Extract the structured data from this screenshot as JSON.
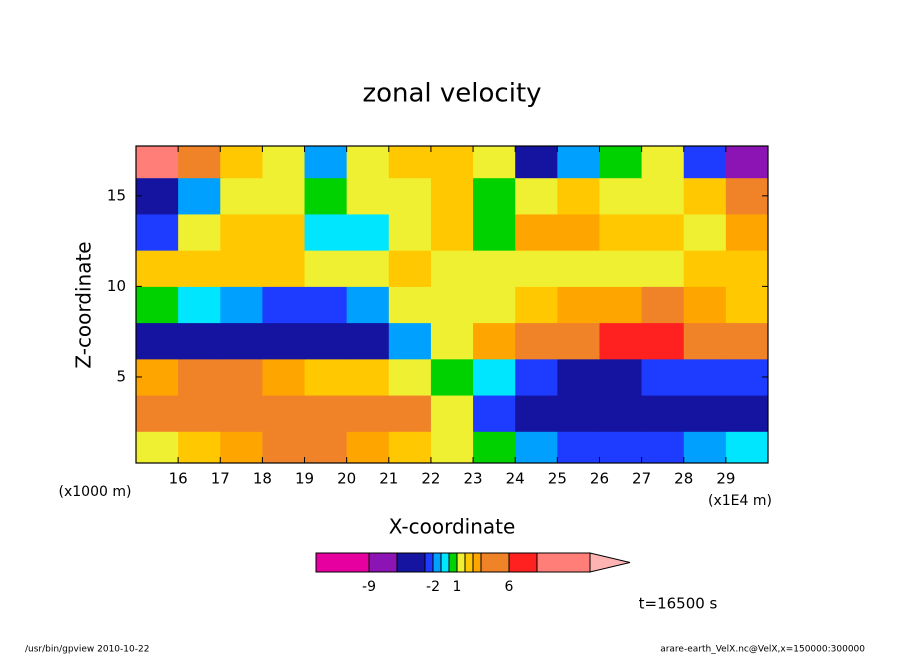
{
  "chart_data": {
    "type": "heatmap",
    "title": "zonal velocity",
    "x_label": "X-coordinate",
    "y_label": "Z-coordinate",
    "x_unit_label": "(x1E4 m)",
    "y_unit_label": "(x1000 m)",
    "xlim": [
      15,
      30
    ],
    "ylim": [
      0.25,
      17.75
    ],
    "xticks": [
      16,
      17,
      18,
      19,
      20,
      21,
      22,
      23,
      24,
      25,
      26,
      27,
      28,
      29
    ],
    "yticks": [
      5,
      10,
      15
    ],
    "x": [
      15.5,
      16.5,
      17.5,
      18.5,
      19.5,
      20.5,
      21.5,
      22.5,
      23.5,
      24.5,
      25.5,
      26.5,
      27.5,
      28.5,
      29.5
    ],
    "y": [
      1,
      3,
      5,
      7,
      9,
      11,
      13,
      15,
      17
    ],
    "z": [
      [
        1,
        2,
        3,
        4,
        4,
        3,
        2,
        1,
        0,
        -2,
        -3,
        -3,
        -3,
        -2,
        -1
      ],
      [
        4,
        5,
        5,
        5,
        5,
        5,
        4,
        1,
        -3,
        -5,
        -5,
        -5,
        -5,
        -5,
        -4
      ],
      [
        3,
        4,
        4,
        3,
        2,
        2,
        1,
        0,
        -1,
        -3,
        -4,
        -4,
        -3,
        -3,
        -3
      ],
      [
        -4,
        -4,
        -5,
        -6,
        -5,
        -4,
        -2,
        1,
        3,
        4,
        5,
        6,
        6,
        5,
        4
      ],
      [
        0,
        -1,
        -2,
        -3,
        -3,
        -2,
        1,
        1,
        1,
        2,
        3,
        3,
        4,
        3,
        2
      ],
      [
        2,
        2,
        2,
        2,
        1,
        1,
        2,
        1,
        1,
        1,
        1,
        1,
        1,
        2,
        2
      ],
      [
        -3,
        1,
        2,
        2,
        -1,
        -1,
        1,
        2,
        0,
        3,
        3,
        2,
        2,
        1,
        3
      ],
      [
        -5,
        -2,
        1,
        1,
        0,
        1,
        1,
        2,
        0,
        1,
        2,
        1,
        1,
        2,
        5
      ],
      [
        9,
        4,
        2,
        1,
        -2,
        1,
        2,
        2,
        1,
        -4,
        -2,
        0,
        1,
        -3,
        -9
      ]
    ],
    "colorbar": {
      "levels": [
        -12,
        -9,
        -6,
        -3,
        -2,
        -1,
        0,
        1,
        2,
        3,
        4,
        6,
        9,
        12
      ],
      "colors": [
        "#e600a0",
        "#8c14b4",
        "#1414a0",
        "#1e3cff",
        "#00a0ff",
        "#00e6ff",
        "#00d200",
        "#f0f032",
        "#ffc800",
        "#ffa500",
        "#f08228",
        "#ff2020",
        "#ff7f78"
      ],
      "over_color": "#ffb4b4",
      "ticks": [
        -9,
        -2,
        1,
        6
      ]
    },
    "annotation": "t=16500 s",
    "footer_left": "/usr/bin/gpview  2010-10-22",
    "footer_right": "arare-earth_VelX.nc@VelX,x=150000:300000"
  }
}
